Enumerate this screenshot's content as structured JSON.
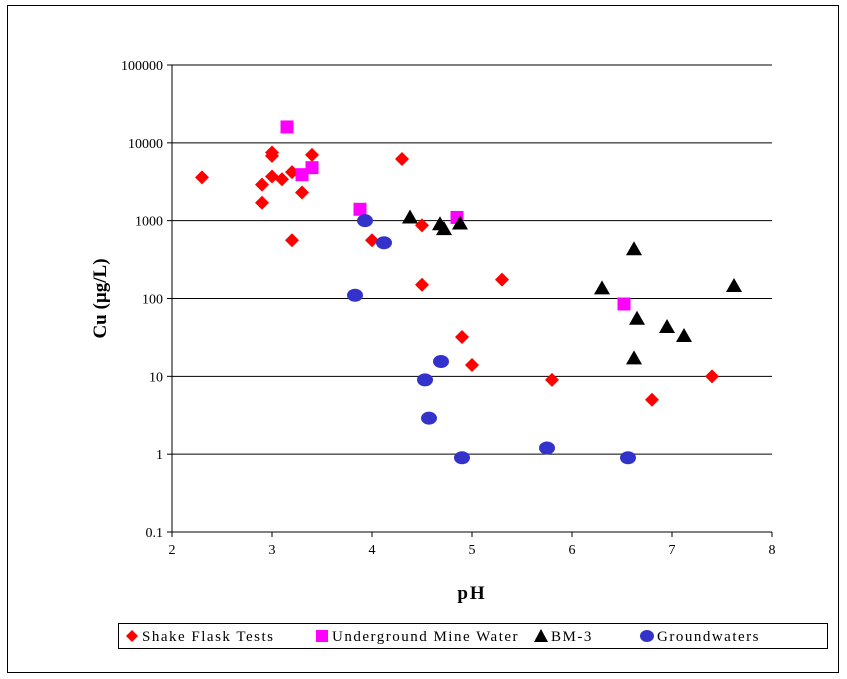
{
  "chart_data": {
    "type": "scatter",
    "title": "",
    "xlabel": "pH",
    "ylabel": "Cu (µg/L)",
    "xlim": [
      2,
      8
    ],
    "ylim": [
      0.1,
      100000
    ],
    "yscale": "log",
    "x_ticks": [
      "2",
      "3",
      "4",
      "5",
      "6",
      "7",
      "8"
    ],
    "y_ticks": [
      "0.1",
      "1",
      "10",
      "100",
      "1000",
      "10000",
      "100000"
    ],
    "grid": "horizontal major gridlines",
    "legend_position": "bottom",
    "series": [
      {
        "name": "Shake Flask Tests",
        "marker": "diamond",
        "color": "#ff0000",
        "points": [
          [
            2.3,
            3600
          ],
          [
            2.9,
            2900
          ],
          [
            2.9,
            1700
          ],
          [
            3.0,
            7500
          ],
          [
            3.0,
            6800
          ],
          [
            3.0,
            3700
          ],
          [
            3.1,
            3400
          ],
          [
            3.2,
            4200
          ],
          [
            3.2,
            560
          ],
          [
            3.3,
            2300
          ],
          [
            3.4,
            7000
          ],
          [
            4.0,
            560
          ],
          [
            4.3,
            6200
          ],
          [
            4.5,
            870
          ],
          [
            4.5,
            150
          ],
          [
            4.9,
            32
          ],
          [
            5.0,
            14
          ],
          [
            5.3,
            175
          ],
          [
            5.8,
            9
          ],
          [
            6.8,
            5
          ],
          [
            7.4,
            10
          ]
        ]
      },
      {
        "name": "Underground Mine Water",
        "marker": "square",
        "color": "#ff00ff",
        "points": [
          [
            3.15,
            16000
          ],
          [
            3.3,
            3900
          ],
          [
            3.4,
            4800
          ],
          [
            3.88,
            1400
          ],
          [
            4.85,
            1100
          ],
          [
            6.52,
            85
          ]
        ]
      },
      {
        "name": "BM-3",
        "marker": "triangle",
        "color": "#000000",
        "points": [
          [
            4.38,
            1100
          ],
          [
            4.68,
            900
          ],
          [
            4.72,
            780
          ],
          [
            4.88,
            920
          ],
          [
            6.3,
            135
          ],
          [
            6.62,
            430
          ],
          [
            6.65,
            55
          ],
          [
            6.62,
            17
          ],
          [
            6.95,
            43
          ],
          [
            7.12,
            33
          ],
          [
            7.62,
            145
          ]
        ]
      },
      {
        "name": "Groundwaters",
        "marker": "circle",
        "color": "#3333cc",
        "points": [
          [
            3.83,
            110
          ],
          [
            3.93,
            1000
          ],
          [
            4.12,
            520
          ],
          [
            4.53,
            9
          ],
          [
            4.57,
            2.9
          ],
          [
            4.69,
            15.5
          ],
          [
            4.9,
            0.9
          ],
          [
            5.75,
            1.2
          ],
          [
            6.56,
            0.9
          ]
        ]
      }
    ]
  }
}
